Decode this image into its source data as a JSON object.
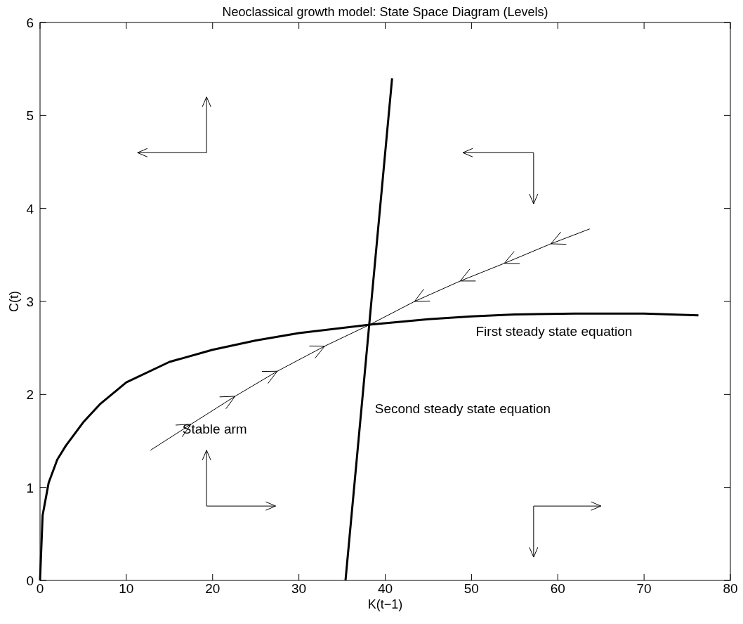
{
  "chart_data": {
    "type": "line",
    "title": "Neoclassical growth model: State Space Diagram (Levels)",
    "xlabel": "K(t−1)",
    "ylabel": "C(t)",
    "xlim": [
      0,
      80
    ],
    "xticks": [
      0,
      10,
      20,
      30,
      40,
      50,
      60,
      70,
      80
    ],
    "ylim": [
      0,
      6
    ],
    "yticks": [
      0,
      1,
      2,
      3,
      4,
      5,
      6
    ],
    "grid": false,
    "marker": "none",
    "line_style": "solid",
    "series": [
      {
        "color": "#000000",
        "x": [
          0,
          0.3,
          1,
          2,
          3,
          5,
          7,
          10,
          15,
          20,
          25,
          30,
          38.2,
          45,
          50,
          55,
          62,
          70,
          76.3
        ],
        "values": [
          0,
          0.7,
          1.05,
          1.3,
          1.45,
          1.7,
          1.9,
          2.13,
          2.35,
          2.48,
          2.58,
          2.66,
          2.75,
          2.81,
          2.84,
          2.86,
          2.87,
          2.87,
          2.85
        ]
      },
      {
        "color": "#000000",
        "x": [
          35.4,
          40.8
        ],
        "values": [
          0,
          5.4
        ]
      },
      {
        "color": "#000000",
        "x": [
          12.8,
          17.5,
          22.6,
          27.5,
          33,
          38.2,
          43.4,
          48.7,
          53.8,
          59.2,
          63.7
        ],
        "values": [
          1.4,
          1.68,
          1.98,
          2.25,
          2.52,
          2.75,
          3.0,
          3.22,
          3.41,
          3.62,
          3.78
        ]
      }
    ],
    "annotations": [
      "First steady state equation",
      "Second steady state equation",
      "Stable arm"
    ]
  }
}
